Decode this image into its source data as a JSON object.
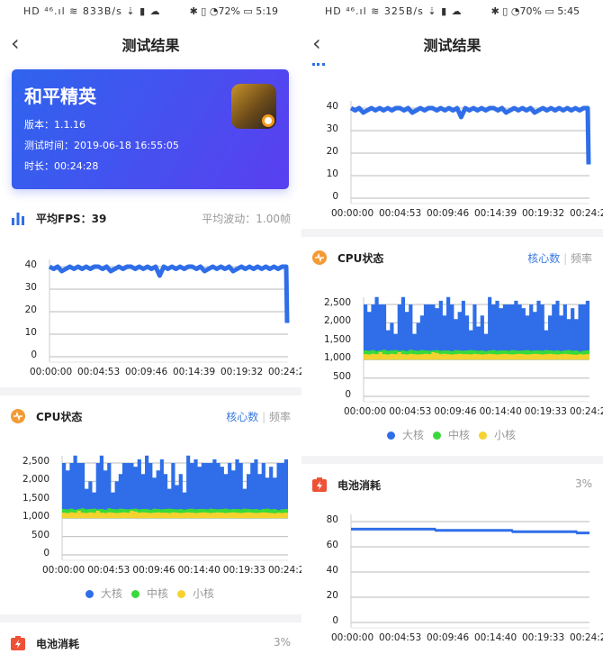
{
  "left": {
    "status": {
      "left": "HD ⁴⁶.ıl ≋ 833B/s ⇣ ▮ ☁",
      "right": "✱ ▯ ◔72% ▭ 5:19"
    },
    "header": {
      "back": "‹",
      "title": "测试结果"
    },
    "app": {
      "name": "和平精英",
      "version": "版本：1.1.16",
      "test_time": "测试时间：2019-06-18 16:55:05",
      "duration": "时长：00:24:28"
    },
    "fps": {
      "label": "平均FPS：39",
      "fluct": "平均波动：1.00帧"
    },
    "cpu": {
      "label": "CPU状态",
      "tab_cores": "核心数",
      "tab_divider": "|",
      "tab_freq": "频率"
    },
    "battery": {
      "label": "电池消耗",
      "value": "3%"
    }
  },
  "right": {
    "status": {
      "left": "HD ⁴⁶.ıl ≋ 325B/s ⇣ ▮ ☁",
      "right": "✱ ▯ ◔70% ▭ 5:45"
    },
    "header": {
      "back": "‹",
      "title": "测试结果"
    },
    "cpu": {
      "label": "CPU状态",
      "tab_cores": "核心数",
      "tab_divider": "|",
      "tab_freq": "频率"
    },
    "battery": {
      "label": "电池消耗",
      "value": "3%"
    }
  },
  "colors": {
    "accent": "#2f6ee8",
    "big": "#2f6ee8",
    "mid": "#39d93b",
    "small": "#f5d22e",
    "cpu_icon": "#f39a34",
    "battery_icon": "#ee5236"
  },
  "chart_data": [
    {
      "id": "fps",
      "type": "line",
      "ylim": [
        0,
        40
      ],
      "yticks": [
        "0",
        "10",
        "20",
        "30",
        "40"
      ],
      "ytick_values": [
        0,
        10,
        20,
        30,
        40
      ],
      "xticks": [
        "00:00:00",
        "00:04:53",
        "00:09:46",
        "00:14:39",
        "00:19:32",
        "00:24:2"
      ],
      "xlim_minutes": [
        0,
        24.47
      ],
      "values": [
        40,
        39,
        40,
        38,
        39,
        40,
        39,
        40,
        39,
        40,
        39,
        40,
        40,
        39,
        40,
        38,
        39,
        40,
        39,
        40,
        40,
        39,
        40,
        39,
        40,
        39,
        40,
        36,
        40,
        39,
        40,
        39,
        40,
        39,
        40,
        40,
        39,
        40,
        38,
        39,
        40,
        39,
        40,
        39,
        40,
        38,
        39,
        40,
        39,
        40,
        39,
        40,
        39,
        40,
        39,
        40,
        39,
        40,
        40,
        15
      ]
    },
    {
      "id": "cpu",
      "type": "area",
      "ylim": [
        0,
        2500
      ],
      "yticks": [
        "0",
        "500",
        "1,000",
        "1,500",
        "2,000",
        "2,500"
      ],
      "ytick_values": [
        0,
        500,
        1000,
        1500,
        2000,
        2500
      ],
      "xticks": [
        "00:00:00",
        "00:04:53",
        "00:09:46",
        "00:14:40",
        "00:19:33",
        "00:24:2"
      ],
      "series": [
        {
          "name": "大核",
          "values": [
            2500,
            2300,
            2500,
            2700,
            2500,
            2500,
            1800,
            2000,
            1700,
            2500,
            2700,
            2300,
            2500,
            1700,
            2000,
            2200,
            2500,
            2500,
            2500,
            2400,
            2600,
            2200,
            2700,
            2500,
            2100,
            2300,
            2600,
            2200,
            1800,
            2500,
            1900,
            2200,
            1700,
            2700,
            2500,
            2600,
            2400,
            2500,
            2500,
            2500,
            2600,
            2500,
            2400,
            2200,
            2500,
            2300,
            2600,
            2500,
            1800,
            2200,
            2500,
            2600,
            2200,
            2500,
            2100,
            2400,
            2100,
            2500,
            2500,
            2600
          ]
        },
        {
          "name": "中核",
          "values": [
            1250,
            1240,
            1260,
            1230,
            1250,
            1270,
            1240,
            1250,
            1260,
            1240,
            1250,
            1230,
            1270,
            1250,
            1240,
            1260,
            1250,
            1240,
            1250,
            1260,
            1240,
            1250,
            1250,
            1230,
            1260,
            1250,
            1240,
            1250,
            1260,
            1250,
            1240,
            1250,
            1230,
            1250,
            1260,
            1240,
            1250,
            1250,
            1240,
            1260,
            1250,
            1240,
            1250,
            1260,
            1240,
            1250,
            1250,
            1240,
            1260,
            1250,
            1240,
            1250,
            1230,
            1250,
            1260,
            1240,
            1250,
            1220,
            1240,
            1250
          ]
        },
        {
          "name": "小核",
          "values": [
            1150,
            1140,
            1160,
            1150,
            1200,
            1150,
            1140,
            1160,
            1150,
            1200,
            1150,
            1140,
            1160,
            1150,
            1140,
            1150,
            1160,
            1150,
            1200,
            1180,
            1150,
            1160,
            1150,
            1140,
            1150,
            1160,
            1150,
            1150,
            1140,
            1160,
            1150,
            1140,
            1150,
            1160,
            1150,
            1140,
            1150,
            1160,
            1150,
            1140,
            1150,
            1160,
            1150,
            1140,
            1150,
            1160,
            1150,
            1140,
            1150,
            1160,
            1150,
            1140,
            1150,
            1160,
            1150,
            1140,
            1130,
            1150,
            1140,
            1150
          ]
        }
      ]
    },
    {
      "id": "battery",
      "type": "line",
      "ylim": [
        0,
        80
      ],
      "yticks": [
        "0",
        "20",
        "40",
        "60",
        "80"
      ],
      "ytick_values": [
        0,
        20,
        40,
        60,
        80
      ],
      "xticks": [
        "00:00:00",
        "00:04:53",
        "00:09:46",
        "00:14:40",
        "00:19:33",
        "00:24:2"
      ],
      "points": [
        [
          0,
          74
        ],
        [
          8.6,
          74
        ],
        [
          8.7,
          73
        ],
        [
          16.5,
          73
        ],
        [
          16.6,
          72
        ],
        [
          23.1,
          72
        ],
        [
          23.2,
          71
        ],
        [
          24.47,
          71
        ]
      ]
    }
  ]
}
